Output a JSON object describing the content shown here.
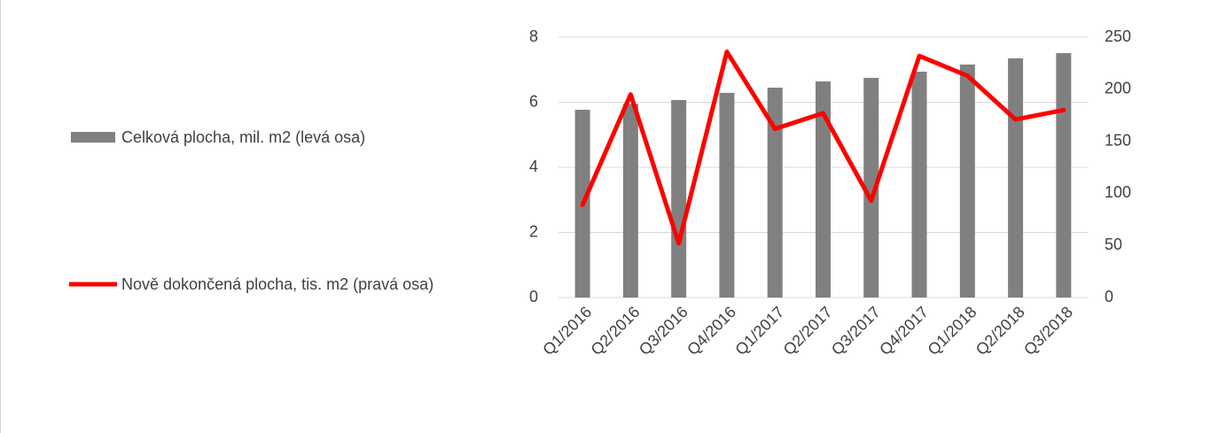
{
  "chart_data": {
    "type": "bar_line",
    "categories": [
      "Q1/2016",
      "Q2/2016",
      "Q3/2016",
      "Q4/2016",
      "Q1/2017",
      "Q2/2017",
      "Q3/2017",
      "Q4/2017",
      "Q1/2018",
      "Q2/2018",
      "Q3/2018"
    ],
    "series": [
      {
        "name": "Celková plocha, mil. m2 (levá osa)",
        "type": "bar",
        "color": "#808080",
        "axis": "y",
        "values": [
          5.77,
          5.95,
          6.07,
          6.29,
          6.45,
          6.64,
          6.75,
          6.94,
          7.16,
          7.35,
          7.51
        ]
      },
      {
        "name": "Nově dokončená plocha, tis. m2 (pravá osa)",
        "type": "line",
        "color": "#ff0000",
        "axis": "y2",
        "values": [
          89,
          195,
          52,
          236,
          162,
          177,
          93,
          232,
          213,
          171,
          180
        ]
      }
    ],
    "ylim": [
      0,
      8
    ],
    "yticks": [
      0,
      2,
      4,
      6,
      8
    ],
    "y2lim": [
      0,
      250
    ],
    "y2ticks": [
      0,
      50,
      100,
      150,
      200,
      250
    ],
    "grid": true,
    "legend": "left"
  }
}
